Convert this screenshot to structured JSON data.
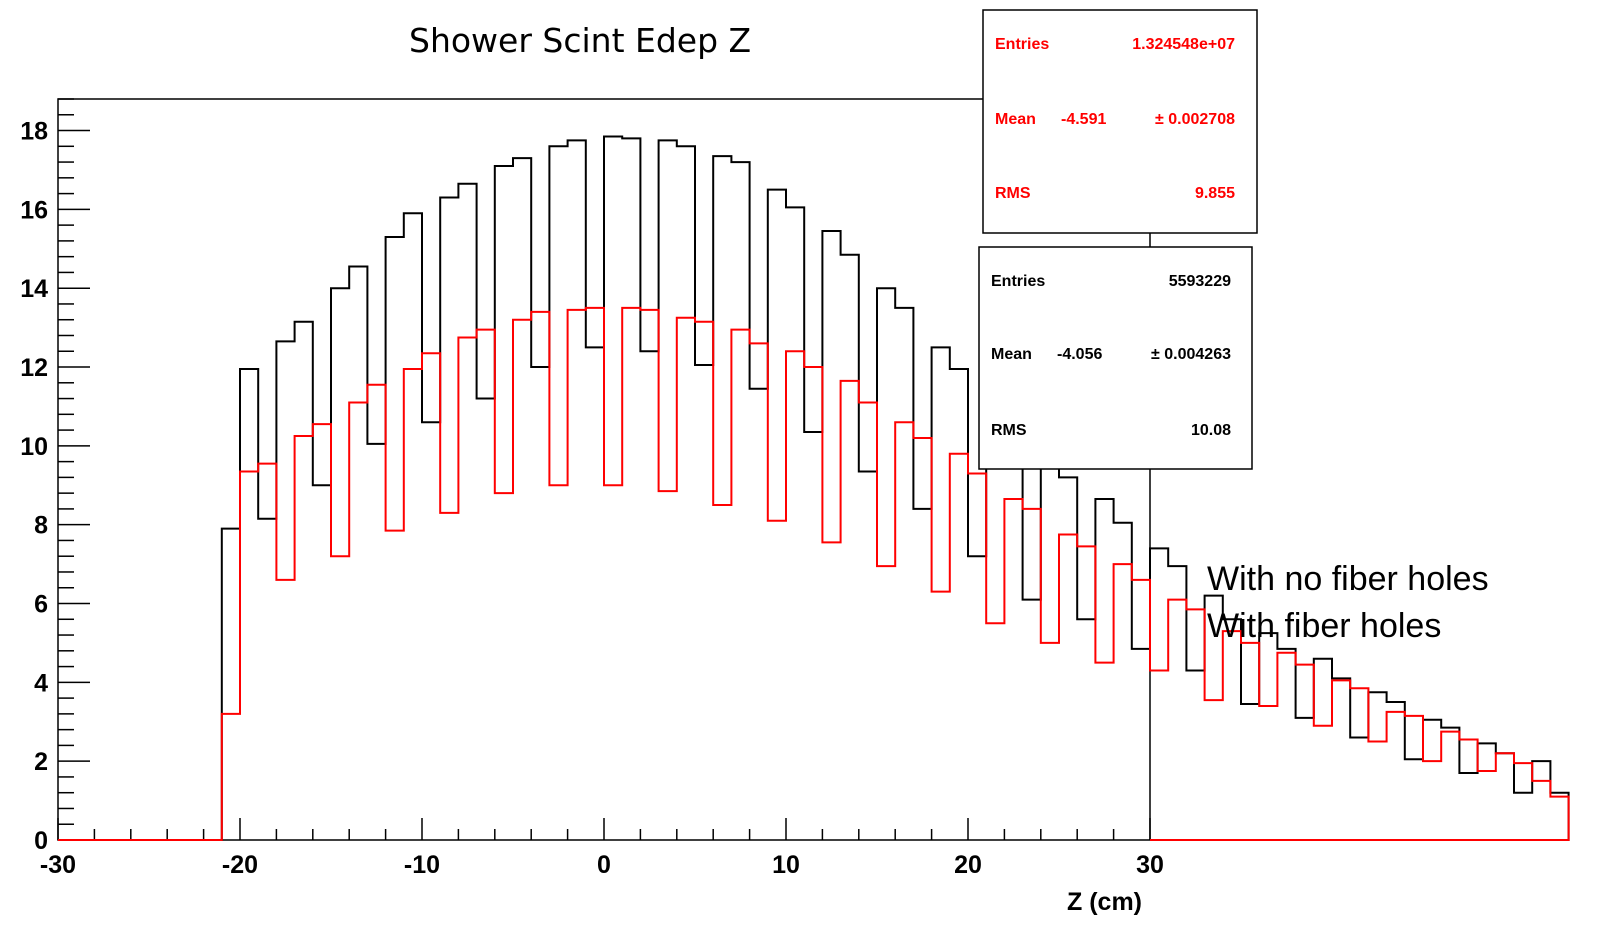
{
  "chart_data": {
    "type": "histogram",
    "title": "Shower Scint Edep Z",
    "xlabel": "Z (cm)",
    "ylabel": "",
    "xlim": [
      -30,
      30
    ],
    "ylim": [
      0,
      18.8
    ],
    "x_ticks": [
      "-30",
      "-20",
      "-10",
      "0",
      "10",
      "20",
      "30"
    ],
    "y_ticks": [
      "0",
      "2",
      "4",
      "6",
      "8",
      "10",
      "12",
      "14",
      "16",
      "18"
    ],
    "bin_edges_start": -21,
    "bin_width": 1,
    "grid": false,
    "series": [
      {
        "color": "#000000",
        "values": [
          7.9,
          11.95,
          8.15,
          12.65,
          13.15,
          9.0,
          14.0,
          14.55,
          10.05,
          15.3,
          15.9,
          10.6,
          16.3,
          16.65,
          11.2,
          17.1,
          17.3,
          12.0,
          17.6,
          17.75,
          12.5,
          17.85,
          17.8,
          12.4,
          17.75,
          17.6,
          12.05,
          17.35,
          17.2,
          11.45,
          16.5,
          16.05,
          10.35,
          15.45,
          14.85,
          9.35,
          14.0,
          13.5,
          8.4,
          12.5,
          11.95,
          7.2,
          11.0,
          10.4,
          6.1,
          9.95,
          9.2,
          5.6,
          8.65,
          8.05,
          4.85,
          7.4,
          6.95,
          4.3,
          6.2,
          5.6,
          3.45,
          5.25,
          4.85,
          3.1,
          4.6,
          4.1,
          2.6,
          3.75,
          3.5,
          2.05,
          3.05,
          2.85,
          1.7,
          2.45,
          2.2,
          1.2,
          2.0,
          1.2
        ]
      },
      {
        "color": "#ff0000",
        "values": [
          3.2,
          9.35,
          9.55,
          6.6,
          10.25,
          10.55,
          7.2,
          11.1,
          11.55,
          7.85,
          11.95,
          12.35,
          8.3,
          12.75,
          12.95,
          8.8,
          13.2,
          13.4,
          9.0,
          13.45,
          13.5,
          9.0,
          13.5,
          13.45,
          8.85,
          13.25,
          13.15,
          8.5,
          12.95,
          12.6,
          8.1,
          12.4,
          12.0,
          7.55,
          11.65,
          11.1,
          6.95,
          10.6,
          10.2,
          6.3,
          9.8,
          9.3,
          5.5,
          8.65,
          8.4,
          5.0,
          7.75,
          7.45,
          4.5,
          7.0,
          6.6,
          4.3,
          6.1,
          5.85,
          3.55,
          5.3,
          5.0,
          3.4,
          4.75,
          4.45,
          2.9,
          4.05,
          3.85,
          2.5,
          3.25,
          3.15,
          2.0,
          2.75,
          2.55,
          1.75,
          2.2,
          1.95,
          1.5,
          1.1
        ]
      }
    ],
    "stats_boxes": [
      {
        "color": "#ff0000",
        "rows": [
          {
            "label": "Entries",
            "value": "1.324548e+07"
          },
          {
            "label": "Mean",
            "value": "-4.591",
            "error": "± 0.002708"
          },
          {
            "label": "RMS",
            "value": "9.855"
          }
        ]
      },
      {
        "color": "#000000",
        "rows": [
          {
            "label": "Entries",
            "value": "5593229"
          },
          {
            "label": "Mean",
            "value": "-4.056",
            "error": "± 0.004263"
          },
          {
            "label": "RMS",
            "value": "10.08"
          }
        ]
      }
    ],
    "annotations": [
      {
        "text": "With no fiber holes",
        "color": "#ff0000"
      },
      {
        "text": "With fiber holes",
        "color": "#000000"
      }
    ]
  }
}
